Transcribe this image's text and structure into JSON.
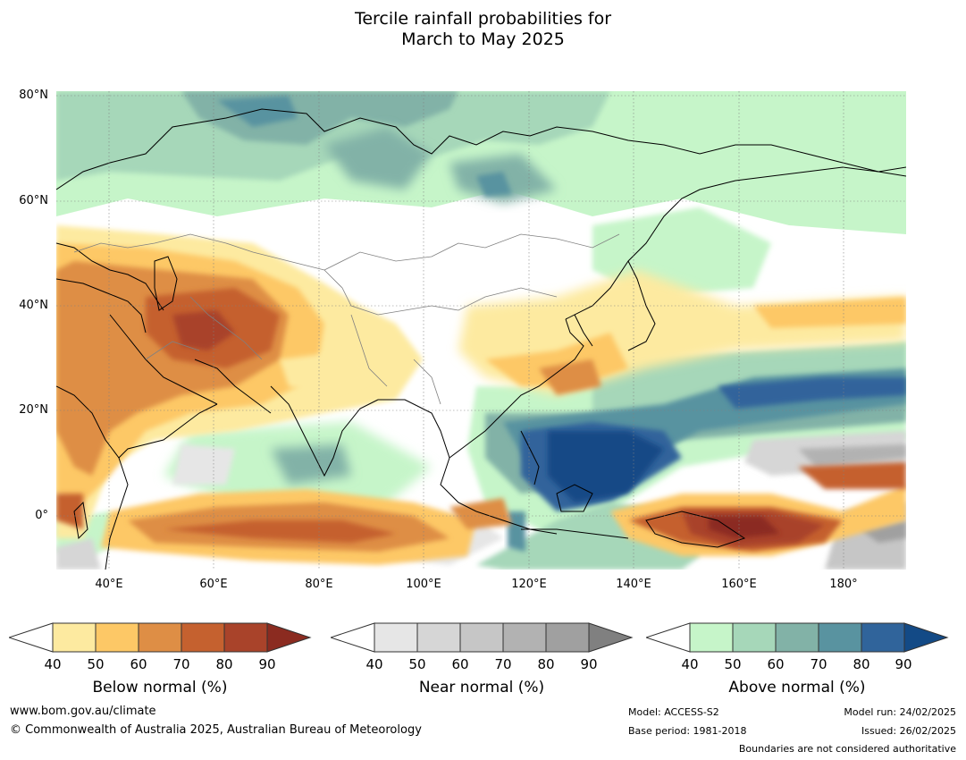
{
  "title": {
    "line1": "Tercile rainfall probabilities for",
    "line2": "March to May 2025"
  },
  "map": {
    "lat_labels": [
      "80°N",
      "60°N",
      "40°N",
      "20°N",
      "0°"
    ],
    "lon_labels": [
      "40°E",
      "60°E",
      "80°E",
      "100°E",
      "120°E",
      "140°E",
      "160°E",
      "180°"
    ],
    "colors": {
      "below": [
        "#fdeaa0",
        "#fdc866",
        "#de8e45",
        "#c5612f",
        "#a9432a",
        "#8b2b20"
      ],
      "near": [
        "#e6e6e6",
        "#d6d6d6",
        "#c6c6c6",
        "#b2b2b2",
        "#a0a0a0",
        "#808080"
      ],
      "above": [
        "#c6f5c9",
        "#a6d7b9",
        "#82b2a7",
        "#5993a0",
        "#30649b",
        "#134a86"
      ]
    }
  },
  "colorbars": [
    {
      "label": "Below normal (%)",
      "ticks": [
        "40",
        "50",
        "60",
        "70",
        "80",
        "90"
      ]
    },
    {
      "label": "Near normal (%)",
      "ticks": [
        "40",
        "50",
        "60",
        "70",
        "80",
        "90"
      ]
    },
    {
      "label": "Above normal (%)",
      "ticks": [
        "40",
        "50",
        "60",
        "70",
        "80",
        "90"
      ]
    }
  ],
  "footer": {
    "website": "www.bom.gov.au/climate",
    "copyright": "© Commonwealth of Australia 2025, Australian Bureau of Meteorology",
    "model": "Model: ACCESS-S2",
    "base_period": "Base period: 1981-2018",
    "model_run": "Model run: 24/02/2025",
    "issued": "Issued: 26/02/2025",
    "disclaimer": "Boundaries are not considered authoritative"
  }
}
